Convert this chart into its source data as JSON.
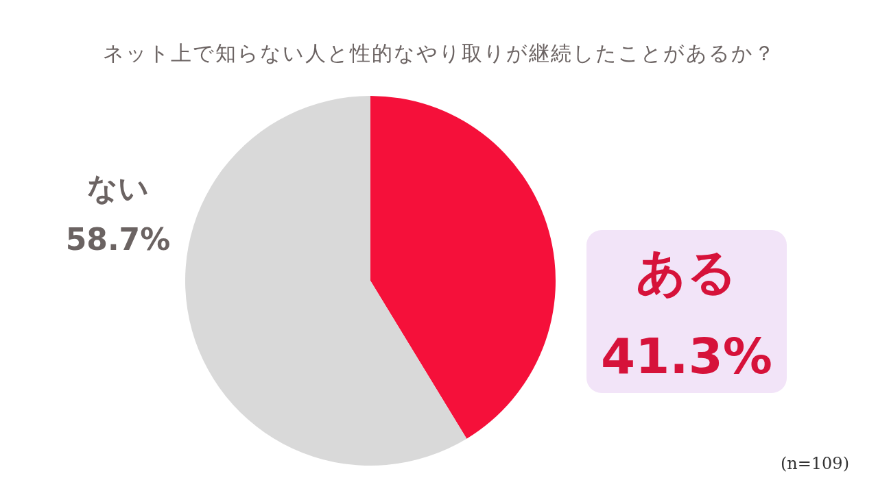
{
  "chart_data": {
    "type": "pie",
    "title": "ネット上で知らない人と性的なやり取りが継続したことがあるか？",
    "categories": [
      "ある",
      "ない"
    ],
    "values": [
      41.3,
      58.7
    ],
    "colors": [
      "#f5103a",
      "#d9d9d9"
    ],
    "value_labels": [
      "41.3%",
      "58.7%"
    ],
    "annotations": [
      "(n=109)"
    ]
  }
}
